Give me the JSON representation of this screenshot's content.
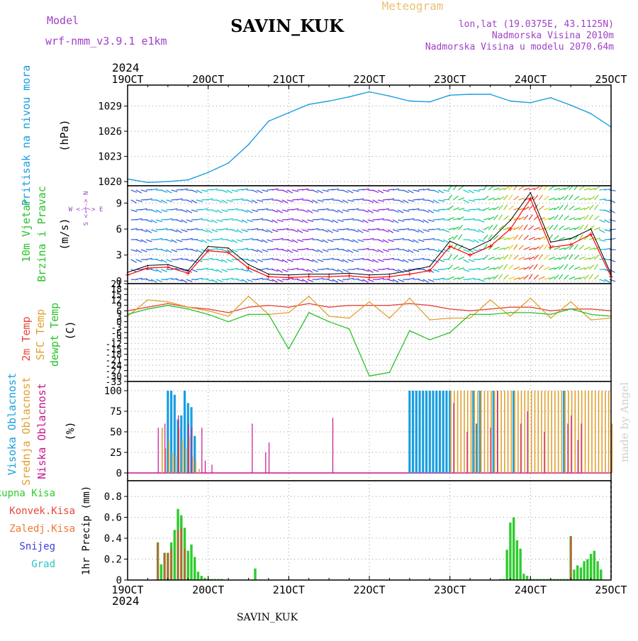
{
  "header": {
    "station": "SAVIN_KUK",
    "product": "Meteogram",
    "model_label": "Model",
    "model_name": "wrf-nmm_v3.9.1  e1km",
    "lonlat": "lon,lat (19.0375E, 43.1125N)",
    "altitude": "Nadmorska Visina 2010m",
    "model_altitude": "Nadmorska Visina u modelu 2070.64m",
    "year_top": "2024",
    "year_bottom": "2024",
    "footer": "SAVIN_KUK",
    "credit": "made by Angel"
  },
  "colors": {
    "pressure": "#1a9ee0",
    "temp2m": "#e8463c",
    "sfc_temp": "#e0a030",
    "dewpoint": "#29c229",
    "wind_speed": "#ff0000",
    "high_cloud": "#1a9ee0",
    "mid_cloud": "#e0a030",
    "low_cloud": "#c8148c",
    "total_precip": "#2ecc2e",
    "conv_precip": "#e8463c",
    "frz_precip": "#f07830",
    "snow": "#3c3cdc",
    "hail": "#29c4c4",
    "header_purple": "#a040c8",
    "header_orange": "#e8c070",
    "credit": "#d0d0d0"
  },
  "chart_data": [
    {
      "id": "pressure",
      "type": "line",
      "ylabel_lines": [
        "Pritisak na nivou mora",
        "(hPa)"
      ],
      "ylim": [
        1019.5,
        1031.5
      ],
      "yticks": [
        "1020",
        "1023",
        "1026",
        "1029"
      ],
      "grid": true,
      "x_hours": [
        0,
        6,
        12,
        18,
        24,
        30,
        36,
        42,
        48,
        54,
        60,
        66,
        72,
        78,
        84,
        90,
        96,
        102,
        108,
        114,
        120,
        126,
        132,
        138,
        144
      ],
      "values": [
        1020.3,
        1019.9,
        1020.0,
        1020.2,
        1021.1,
        1022.2,
        1024.4,
        1027.2,
        1028.2,
        1029.2,
        1029.6,
        1030.1,
        1030.7,
        1030.2,
        1029.6,
        1029.5,
        1030.3,
        1030.4,
        1030.4,
        1029.6,
        1029.4,
        1030.0,
        1029.1,
        1028.1,
        1026.5
      ]
    },
    {
      "id": "wind",
      "type": "line",
      "ylabel_lines": [
        "10m Vjetar",
        "Brzina i Pravac",
        "(m/s)"
      ],
      "compass": "W <-|-> E",
      "compass_ns": "S <-|-> N",
      "ylim": [
        -0.3,
        11
      ],
      "yticks": [
        "0",
        "3",
        "6",
        "9"
      ],
      "grid": true,
      "x_hours": [
        0,
        6,
        12,
        18,
        24,
        30,
        36,
        42,
        48,
        54,
        60,
        66,
        72,
        78,
        84,
        90,
        96,
        102,
        108,
        114,
        120,
        126,
        132,
        138,
        144
      ],
      "speed": [
        0.7,
        1.5,
        1.6,
        0.9,
        3.5,
        3.3,
        1.5,
        0.5,
        0.4,
        0.5,
        0.5,
        0.6,
        0.4,
        0.5,
        0.8,
        1.2,
        4.0,
        3.0,
        4.0,
        6.0,
        9.5,
        3.9,
        4.2,
        5.4,
        0.5
      ],
      "gust": [
        1.0,
        1.8,
        1.9,
        1.2,
        4.0,
        3.8,
        1.9,
        0.8,
        0.7,
        0.8,
        0.8,
        0.9,
        0.7,
        0.8,
        1.2,
        1.7,
        4.6,
        3.6,
        4.7,
        7.0,
        10.2,
        4.5,
        4.9,
        6.0,
        0.8
      ]
    },
    {
      "id": "temperature",
      "type": "line",
      "ylabel_lines": [
        "2m Temp",
        "SFC Temp",
        "dewpt Temp",
        "(C)"
      ],
      "ylim": [
        -33,
        21
      ],
      "yticks": [
        "21",
        "18",
        "15",
        "12",
        "9",
        "6",
        "3",
        "0",
        "-3",
        "-6",
        "-9",
        "-12",
        "-15",
        "-18",
        "-21",
        "-24",
        "-27",
        "-30",
        "-33"
      ],
      "grid": true,
      "x_hours": [
        0,
        6,
        12,
        18,
        24,
        30,
        36,
        42,
        48,
        54,
        60,
        66,
        72,
        78,
        84,
        90,
        96,
        102,
        108,
        114,
        120,
        126,
        132,
        138,
        144
      ],
      "series": [
        {
          "name": "2m Temp",
          "values": [
            6,
            8,
            10,
            8,
            7,
            5,
            8,
            9,
            8,
            10,
            8,
            9,
            9,
            9,
            10,
            9,
            7,
            6,
            7,
            8,
            8,
            6,
            7,
            7,
            6
          ]
        },
        {
          "name": "SFC Temp",
          "values": [
            3,
            12,
            11,
            8,
            6,
            3,
            14,
            4,
            5,
            14,
            3,
            2,
            11,
            2,
            13,
            1,
            2,
            2,
            12,
            3,
            13,
            2,
            11,
            1,
            2
          ]
        },
        {
          "name": "dewpt Temp",
          "values": [
            4,
            7,
            9,
            7,
            4,
            0,
            4,
            4,
            -15,
            5,
            0,
            -4,
            -30,
            -28,
            -5,
            -10,
            -6,
            4,
            4,
            5,
            5,
            4,
            7,
            4,
            3
          ]
        }
      ]
    },
    {
      "id": "clouds",
      "type": "bar",
      "ylabel_lines": [
        "Visoka Oblacnost",
        "Srednja Oblacnost",
        "Niska Oblacnost",
        "(%)"
      ],
      "ylim": [
        0,
        100
      ],
      "yticks": [
        "0",
        "25",
        "50",
        "75",
        "100"
      ],
      "grid": true,
      "series": [
        {
          "name": "Visoka Oblacnost",
          "x_hours": [
            12,
            13,
            14,
            15,
            16,
            17,
            18,
            19,
            20,
            84,
            85,
            86,
            87,
            88,
            89,
            90,
            91,
            92,
            93,
            94,
            95,
            96,
            97,
            98,
            99,
            100,
            101,
            102,
            103,
            104,
            105,
            106,
            107,
            108,
            109,
            110,
            111,
            112,
            113,
            114,
            115,
            116,
            117,
            118,
            119,
            120,
            121,
            122,
            123,
            124,
            125,
            126,
            127,
            128,
            129,
            130,
            131,
            132,
            133,
            134,
            135,
            136,
            137,
            138,
            139,
            140,
            141,
            142,
            143,
            144
          ],
          "values": [
            100,
            100,
            95,
            65,
            70,
            100,
            85,
            80,
            45,
            100,
            100,
            100,
            100,
            100,
            100,
            100,
            100,
            100,
            100,
            100,
            100,
            100,
            0,
            0,
            0,
            0,
            0,
            0,
            100,
            60,
            100,
            0,
            0,
            0,
            100,
            0,
            0,
            0,
            0,
            0,
            100,
            0,
            0,
            0,
            0,
            0,
            0,
            0,
            0,
            0,
            0,
            0,
            0,
            0,
            0,
            100,
            0,
            0,
            0,
            0,
            0,
            0,
            0,
            0,
            0,
            0,
            0,
            0,
            0,
            0
          ]
        },
        {
          "name": "Srednja Oblacnost",
          "x_hours": [
            10,
            11,
            12,
            13,
            14,
            15,
            16,
            17,
            18,
            19,
            20,
            21,
            96,
            97,
            98,
            99,
            100,
            101,
            102,
            103,
            104,
            105,
            106,
            107,
            108,
            109,
            110,
            111,
            112,
            113,
            114,
            115,
            116,
            117,
            118,
            119,
            120,
            121,
            122,
            123,
            124,
            125,
            126,
            127,
            128,
            129,
            130,
            131,
            132,
            133,
            134,
            135,
            136,
            137,
            138,
            139,
            140,
            141,
            142,
            143,
            144
          ],
          "values": [
            55,
            30,
            40,
            25,
            20,
            55,
            40,
            30,
            45,
            20,
            15,
            5,
            100,
            100,
            100,
            100,
            100,
            100,
            100,
            100,
            100,
            100,
            100,
            100,
            100,
            100,
            100,
            100,
            100,
            100,
            100,
            100,
            100,
            100,
            100,
            100,
            100,
            100,
            100,
            100,
            100,
            100,
            100,
            100,
            100,
            100,
            100,
            100,
            100,
            100,
            100,
            100,
            100,
            100,
            100,
            100,
            100,
            100,
            100,
            100,
            60
          ]
        },
        {
          "name": "Niska Oblacnost",
          "x_hours": [
            9,
            11,
            15,
            18,
            19,
            22,
            23,
            25,
            37,
            41,
            42,
            61,
            97,
            101,
            108,
            110,
            117,
            119,
            124,
            131,
            132,
            134,
            135
          ],
          "values": [
            55,
            60,
            70,
            60,
            55,
            55,
            15,
            10,
            60,
            25,
            37,
            67,
            85,
            50,
            55,
            100,
            60,
            75,
            50,
            60,
            70,
            40,
            60
          ]
        }
      ]
    },
    {
      "id": "precip",
      "type": "bar",
      "ylabel_lines": [
        "1hr Precip (mm)"
      ],
      "ylim": [
        0,
        0.95
      ],
      "yticks": [
        "0",
        "0.2",
        "0.4",
        "0.6",
        "0.8"
      ],
      "grid": true,
      "legend": [
        "Ukupna Kisa",
        "Konvek.Kisa",
        "Zaledj.Kisa",
        "Snijeg",
        "Grad"
      ],
      "series": [
        {
          "name": "Ukupna Kisa",
          "x_hours": [
            9,
            10,
            11,
            12,
            13,
            14,
            15,
            16,
            17,
            18,
            19,
            20,
            21,
            22,
            23,
            24,
            25,
            26,
            27,
            28,
            38,
            111,
            112,
            113,
            114,
            115,
            116,
            117,
            118,
            119,
            120,
            121,
            122,
            123,
            124,
            125,
            126,
            127,
            128,
            129,
            130,
            131,
            132,
            133,
            134,
            135,
            136,
            137,
            138,
            139,
            140,
            141
          ],
          "values": [
            0.36,
            0.15,
            0.26,
            0.26,
            0.36,
            0.48,
            0.68,
            0.62,
            0.5,
            0.28,
            0.34,
            0.22,
            0.08,
            0.04,
            0.02,
            0.01,
            0.01,
            0.01,
            0.01,
            0.01,
            0.11,
            0.01,
            0.01,
            0.29,
            0.55,
            0.6,
            0.38,
            0.3,
            0.06,
            0.04,
            0.01,
            0.01,
            0.01,
            0.01,
            0.01,
            0.01,
            0.01,
            0.01,
            0.01,
            0.01,
            0.01,
            0.01,
            0.42,
            0.1,
            0.14,
            0.12,
            0.18,
            0.2,
            0.25,
            0.28,
            0.18,
            0.1
          ]
        },
        {
          "name": "Konvek.Kisa",
          "x_hours": [
            9,
            11,
            12,
            13,
            15,
            16,
            17,
            132
          ],
          "values": [
            0.36,
            0.26,
            0.26,
            0.3,
            0.48,
            0.5,
            0.3,
            0.42
          ]
        }
      ]
    }
  ],
  "x_axis": {
    "hours_total": 144,
    "tick_every_hours": 24,
    "labels": [
      "19OCT",
      "20OCT",
      "21OCT",
      "22OCT",
      "23OCT",
      "24OCT",
      "25OCT"
    ]
  }
}
